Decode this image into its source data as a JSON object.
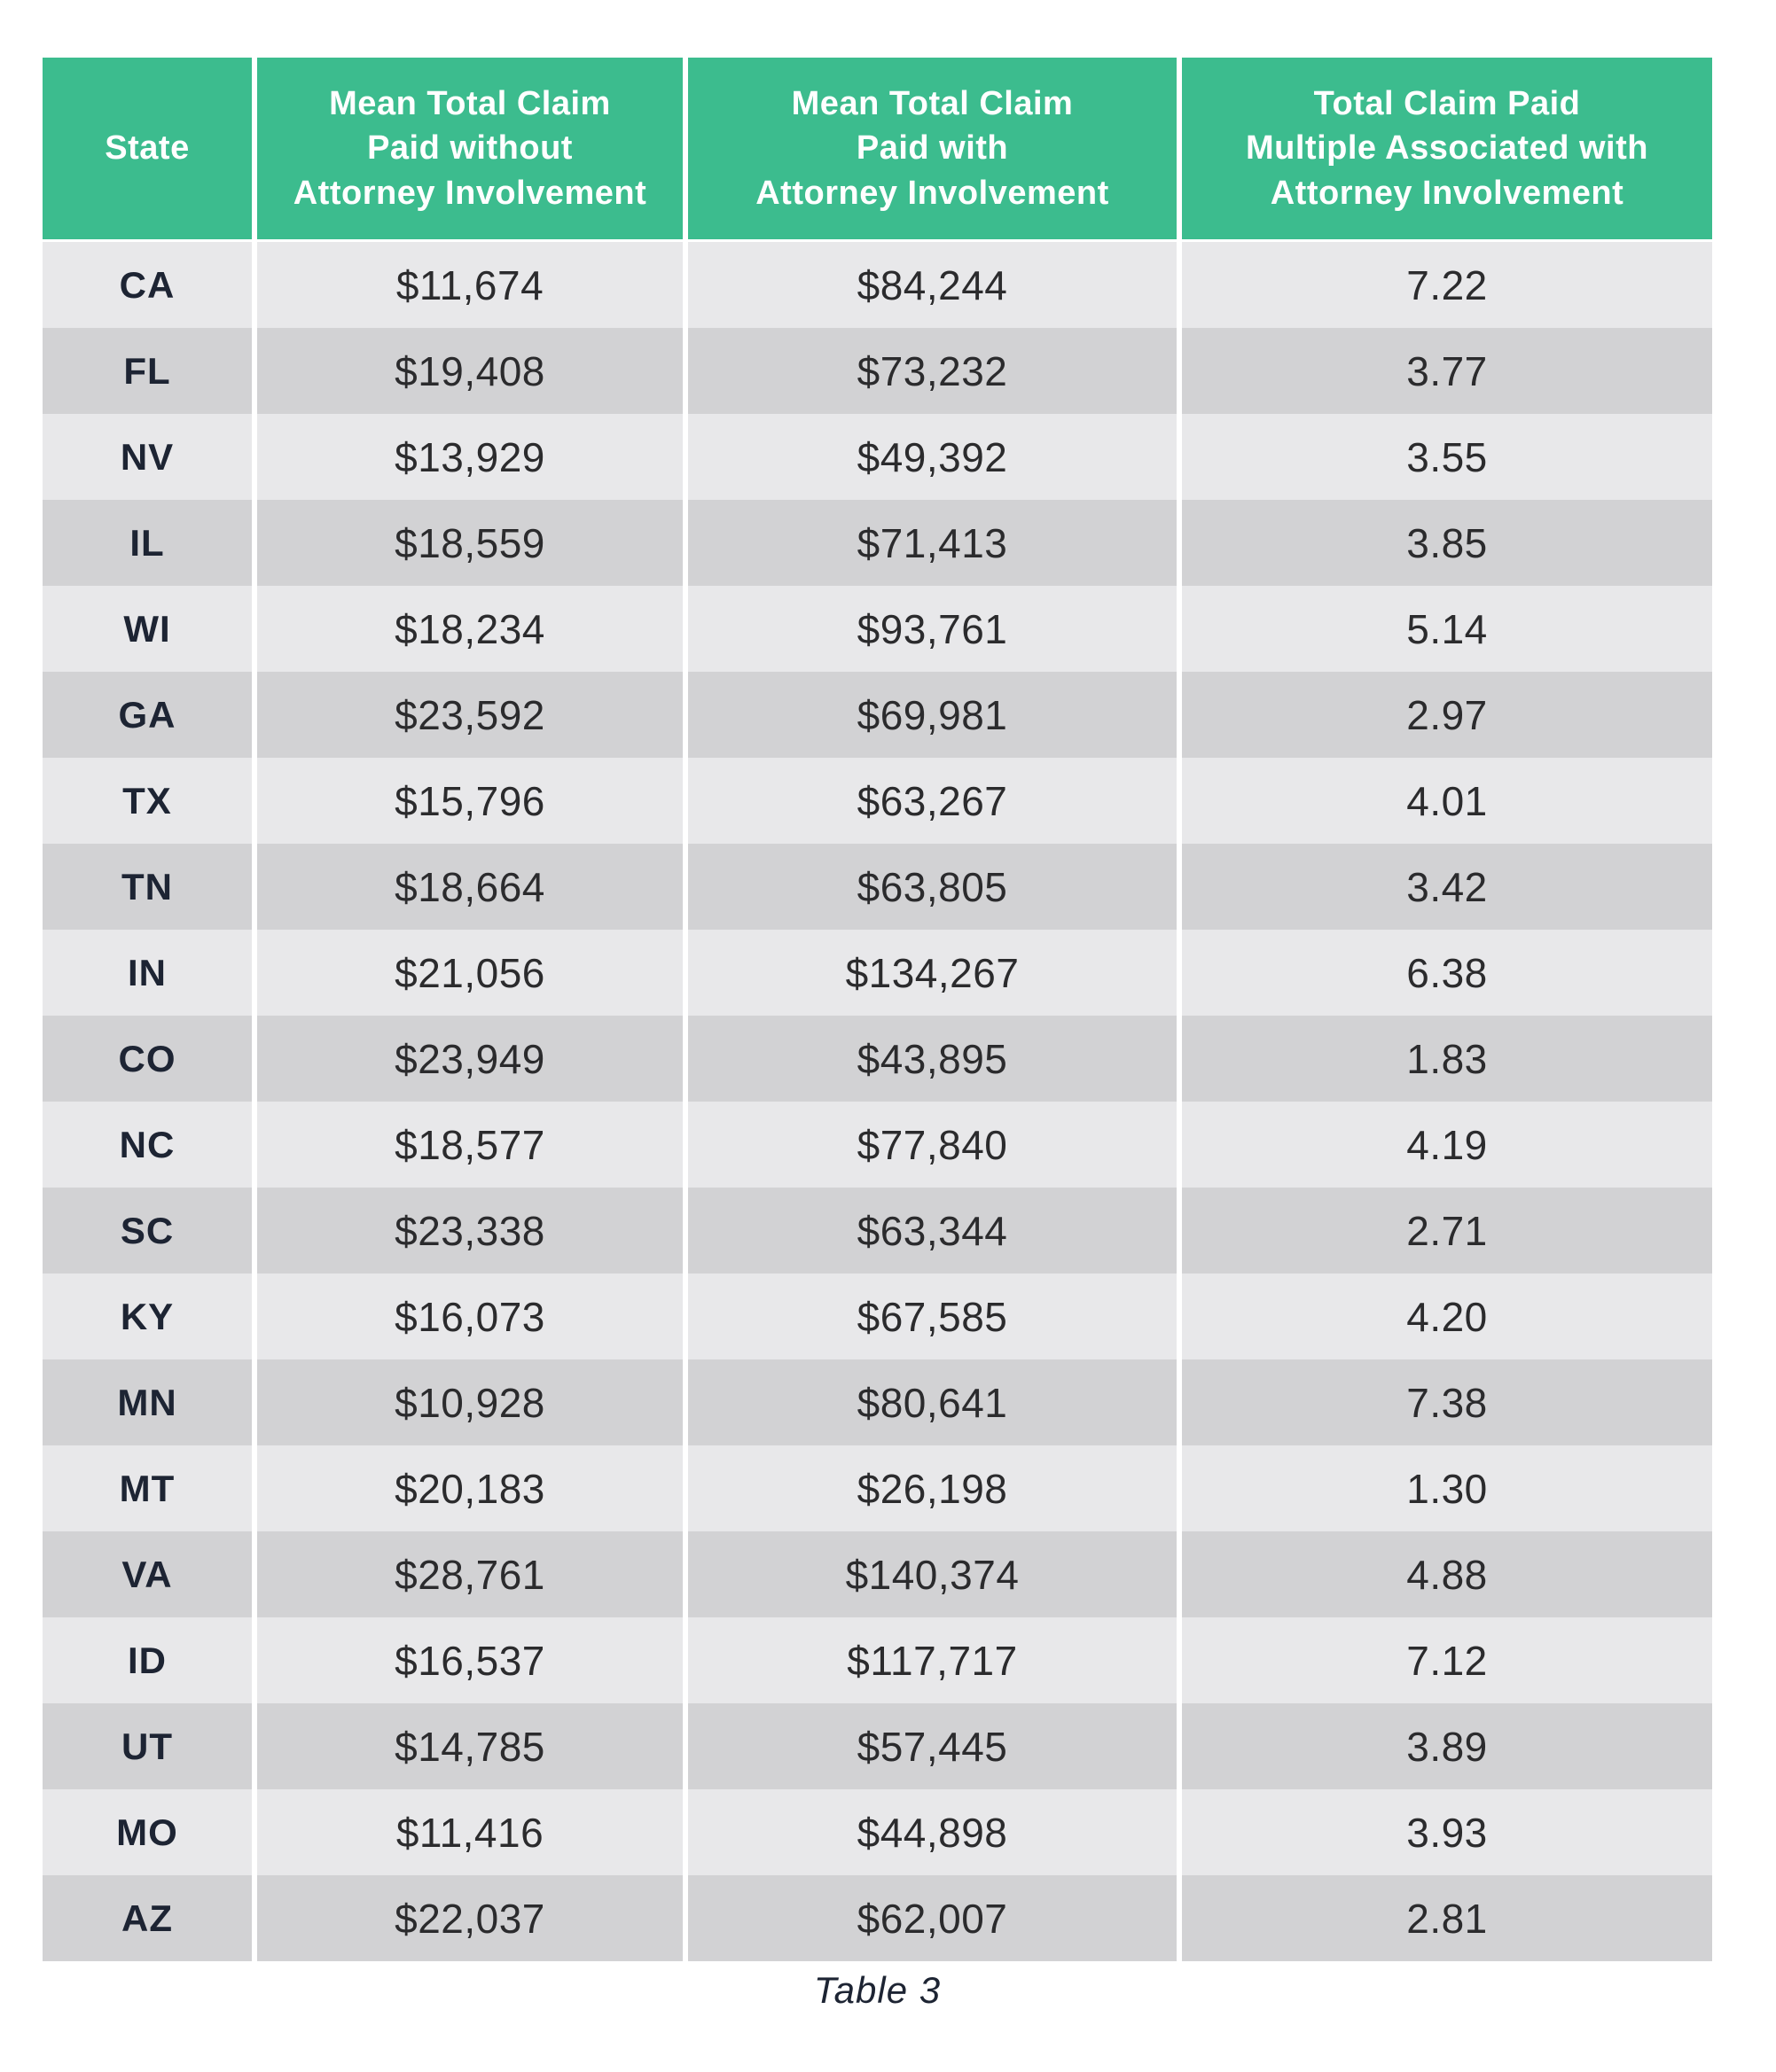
{
  "colors": {
    "header_bg": "#3cbc8e",
    "header_text": "#ffffff",
    "row_light": "#e8e8ea",
    "row_dark": "#d2d2d4",
    "state_text": "#1d2433",
    "value_text": "#2b2b2d",
    "caption_text": "#1d2433",
    "separator": "#ffffff"
  },
  "table": {
    "headers": [
      "State",
      "Mean Total Claim\nPaid without\nAttorney Involvement",
      "Mean Total Claim\nPaid with\nAttorney Involvement",
      "Total Claim Paid\nMultiple Associated with\nAttorney Involvement"
    ],
    "rows": [
      {
        "state": "CA",
        "without": "$11,674",
        "with": "$84,244",
        "multiple": "7.22"
      },
      {
        "state": "FL",
        "without": "$19,408",
        "with": "$73,232",
        "multiple": "3.77"
      },
      {
        "state": "NV",
        "without": "$13,929",
        "with": "$49,392",
        "multiple": "3.55"
      },
      {
        "state": "IL",
        "without": "$18,559",
        "with": "$71,413",
        "multiple": "3.85"
      },
      {
        "state": "WI",
        "without": "$18,234",
        "with": "$93,761",
        "multiple": "5.14"
      },
      {
        "state": "GA",
        "without": "$23,592",
        "with": "$69,981",
        "multiple": "2.97"
      },
      {
        "state": "TX",
        "without": "$15,796",
        "with": "$63,267",
        "multiple": "4.01"
      },
      {
        "state": "TN",
        "without": "$18,664",
        "with": "$63,805",
        "multiple": "3.42"
      },
      {
        "state": "IN",
        "without": "$21,056",
        "with": "$134,267",
        "multiple": "6.38"
      },
      {
        "state": "CO",
        "without": "$23,949",
        "with": "$43,895",
        "multiple": "1.83"
      },
      {
        "state": "NC",
        "without": "$18,577",
        "with": "$77,840",
        "multiple": "4.19"
      },
      {
        "state": "SC",
        "without": "$23,338",
        "with": "$63,344",
        "multiple": "2.71"
      },
      {
        "state": "KY",
        "without": "$16,073",
        "with": "$67,585",
        "multiple": "4.20"
      },
      {
        "state": "MN",
        "without": "$10,928",
        "with": "$80,641",
        "multiple": "7.38"
      },
      {
        "state": "MT",
        "without": "$20,183",
        "with": "$26,198",
        "multiple": "1.30"
      },
      {
        "state": "VA",
        "without": "$28,761",
        "with": "$140,374",
        "multiple": "4.88"
      },
      {
        "state": "ID",
        "without": "$16,537",
        "with": "$117,717",
        "multiple": "7.12"
      },
      {
        "state": "UT",
        "without": "$14,785",
        "with": "$57,445",
        "multiple": "3.89"
      },
      {
        "state": "MO",
        "without": "$11,416",
        "with": "$44,898",
        "multiple": "3.93"
      },
      {
        "state": "AZ",
        "without": "$22,037",
        "with": "$62,007",
        "multiple": "2.81"
      }
    ]
  },
  "caption": "Table 3",
  "chart_data": {
    "type": "table",
    "title": "Table 3",
    "columns": [
      "State",
      "Mean Total Claim Paid without Attorney Involvement",
      "Mean Total Claim Paid with Attorney Involvement",
      "Total Claim Paid Multiple Associated with Attorney Involvement"
    ],
    "rows": [
      [
        "CA",
        11674,
        84244,
        7.22
      ],
      [
        "FL",
        19408,
        73232,
        3.77
      ],
      [
        "NV",
        13929,
        49392,
        3.55
      ],
      [
        "IL",
        18559,
        71413,
        3.85
      ],
      [
        "WI",
        18234,
        93761,
        5.14
      ],
      [
        "GA",
        23592,
        69981,
        2.97
      ],
      [
        "TX",
        15796,
        63267,
        4.01
      ],
      [
        "TN",
        18664,
        63805,
        3.42
      ],
      [
        "IN",
        21056,
        134267,
        6.38
      ],
      [
        "CO",
        23949,
        43895,
        1.83
      ],
      [
        "NC",
        18577,
        77840,
        4.19
      ],
      [
        "SC",
        23338,
        63344,
        2.71
      ],
      [
        "KY",
        16073,
        67585,
        4.2
      ],
      [
        "MN",
        10928,
        80641,
        7.38
      ],
      [
        "MT",
        20183,
        26198,
        1.3
      ],
      [
        "VA",
        28761,
        140374,
        4.88
      ],
      [
        "ID",
        16537,
        117717,
        7.12
      ],
      [
        "UT",
        14785,
        57445,
        3.89
      ],
      [
        "MO",
        11416,
        44898,
        3.93
      ],
      [
        "AZ",
        22037,
        62007,
        2.81
      ]
    ]
  }
}
